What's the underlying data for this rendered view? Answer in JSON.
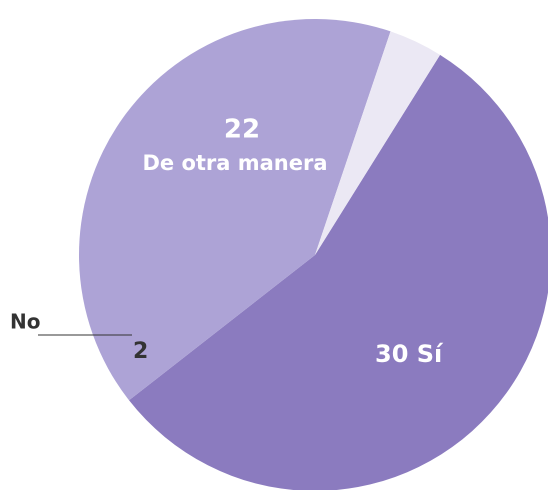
{
  "chart_data": {
    "type": "pie",
    "categories": [
      "Sí",
      "De otra manera",
      "No"
    ],
    "values": [
      30,
      22,
      2
    ],
    "colors": [
      "#8b7bbf",
      "#ada3d6",
      "#ebe8f4"
    ]
  }
}
